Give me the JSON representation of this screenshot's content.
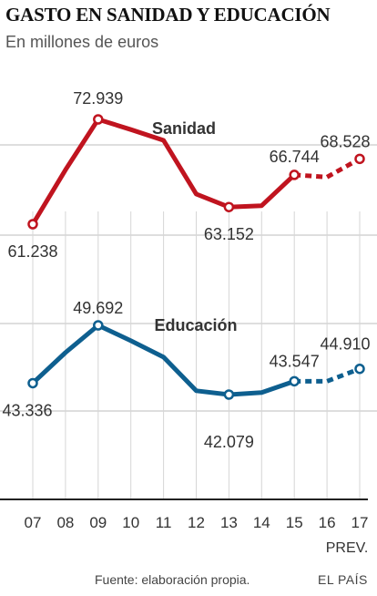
{
  "title": "GASTO EN SANIDAD Y EDUCACIÓN",
  "subtitle": "En millones de euros",
  "footer": {
    "source": "Fuente: elaboración propia.",
    "brand": "EL PAÍS"
  },
  "chart_data": [
    {
      "type": "line",
      "x": [
        "07",
        "08",
        "09",
        "10",
        "11",
        "12",
        "13",
        "14",
        "15",
        "16",
        "17"
      ],
      "x_sublabels": {
        "17": "PREV."
      },
      "grid": true,
      "series": [
        {
          "name": "Sanidad",
          "color": "#c0141f",
          "values": [
            61.238,
            67.3,
            72.939,
            71.8,
            70.6,
            64.6,
            63.152,
            63.3,
            66.744,
            66.5,
            68.528
          ],
          "projected_from_index": 8,
          "labeled": [
            {
              "index": 0,
              "text": "61.238"
            },
            {
              "index": 2,
              "text": "72.939"
            },
            {
              "index": 6,
              "text": "63.152"
            },
            {
              "index": 8,
              "text": "66.744"
            },
            {
              "index": 10,
              "text": "68.528"
            }
          ]
        },
        {
          "name": "Educación",
          "color": "#0e5f8f",
          "values": [
            43.336,
            46.7,
            49.692,
            48.0,
            46.2,
            42.5,
            42.079,
            42.3,
            43.547,
            43.55,
            44.91
          ],
          "projected_from_index": 8,
          "labeled": [
            {
              "index": 0,
              "text": "43.336"
            },
            {
              "index": 2,
              "text": "49.692"
            },
            {
              "index": 6,
              "text": "42.079"
            },
            {
              "index": 8,
              "text": "43.547"
            },
            {
              "index": 10,
              "text": "44.910"
            }
          ]
        }
      ]
    }
  ]
}
